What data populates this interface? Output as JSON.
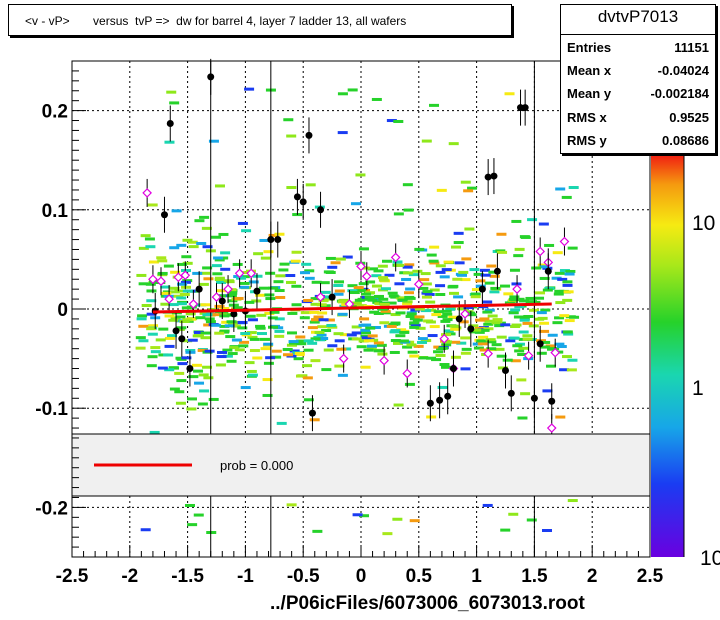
{
  "chart_data": {
    "type": "scatter",
    "title": "<v - vP>       versus  tvP =>  dw for barrel 4, layer 7 ladder 13, all wafers",
    "xlim": [
      -2.5,
      2.5
    ],
    "ylim": [
      -0.25,
      0.25
    ],
    "xticks": [
      "-2.5",
      "-2",
      "-1.5",
      "-1",
      "-0.5",
      "0",
      "0.5",
      "1",
      "1.5",
      "2",
      "2.5"
    ],
    "yticks": [
      "0.2",
      "0.1",
      "0",
      "-0.1",
      "-0.2"
    ],
    "zticks": [
      "10",
      "1",
      "10"
    ],
    "grid": true,
    "stats": {
      "name": "dvtvP7013",
      "rows": [
        {
          "label": "Entries",
          "value": "11151"
        },
        {
          "label": "Mean x",
          "value": "-0.04024"
        },
        {
          "label": "Mean y",
          "value": "-0.002184"
        },
        {
          "label": "RMS x",
          "value": "0.9525"
        },
        {
          "label": "RMS y",
          "value": "0.08686"
        }
      ]
    },
    "legend": {
      "text": "prob = 0.000",
      "position": "bottom-center"
    },
    "fit_line": {
      "x": [
        -1.8,
        1.65
      ],
      "y": [
        -0.003,
        0.005
      ],
      "color": "#ee0000"
    },
    "profile_points": [
      {
        "x": -1.78,
        "y": -0.002
      },
      {
        "x": -1.7,
        "y": 0.095
      },
      {
        "x": -1.65,
        "y": 0.187
      },
      {
        "x": -1.6,
        "y": -0.022
      },
      {
        "x": -1.55,
        "y": -0.03
      },
      {
        "x": -1.48,
        "y": -0.06
      },
      {
        "x": -1.4,
        "y": 0.02
      },
      {
        "x": -1.3,
        "y": 0.234
      },
      {
        "x": -1.2,
        "y": 0.008
      },
      {
        "x": -1.1,
        "y": -0.005
      },
      {
        "x": -1.0,
        "y": -0.002
      },
      {
        "x": -0.9,
        "y": 0.018
      },
      {
        "x": -0.78,
        "y": 0.07
      },
      {
        "x": -0.72,
        "y": 0.07
      },
      {
        "x": -0.55,
        "y": 0.113
      },
      {
        "x": -0.5,
        "y": 0.108
      },
      {
        "x": -0.45,
        "y": 0.175
      },
      {
        "x": -0.42,
        "y": -0.105
      },
      {
        "x": -0.35,
        "y": 0.1
      },
      {
        "x": -0.25,
        "y": 0.012
      },
      {
        "x": 0.6,
        "y": -0.095
      },
      {
        "x": 0.68,
        "y": -0.092
      },
      {
        "x": 0.75,
        "y": -0.088
      },
      {
        "x": 0.8,
        "y": -0.06
      },
      {
        "x": 0.85,
        "y": -0.01
      },
      {
        "x": 0.95,
        "y": -0.02
      },
      {
        "x": 1.05,
        "y": 0.02
      },
      {
        "x": 1.1,
        "y": 0.133
      },
      {
        "x": 1.15,
        "y": 0.134
      },
      {
        "x": 1.18,
        "y": 0.038
      },
      {
        "x": 1.25,
        "y": -0.062
      },
      {
        "x": 1.3,
        "y": -0.085
      },
      {
        "x": 1.38,
        "y": 0.203
      },
      {
        "x": 1.42,
        "y": 0.203
      },
      {
        "x": 1.5,
        "y": -0.09
      },
      {
        "x": 1.55,
        "y": -0.035
      },
      {
        "x": 1.62,
        "y": 0.038
      },
      {
        "x": 1.65,
        "y": -0.093
      }
    ],
    "open_points": [
      {
        "x": -1.85,
        "y": 0.117
      },
      {
        "x": -1.8,
        "y": 0.03
      },
      {
        "x": -1.73,
        "y": 0.028
      },
      {
        "x": -1.66,
        "y": 0.01
      },
      {
        "x": -1.58,
        "y": 0.032
      },
      {
        "x": -1.52,
        "y": 0.034
      },
      {
        "x": -1.45,
        "y": 0.005
      },
      {
        "x": -1.25,
        "y": 0.012
      },
      {
        "x": -1.15,
        "y": 0.02
      },
      {
        "x": -1.05,
        "y": 0.036
      },
      {
        "x": -0.95,
        "y": 0.036
      },
      {
        "x": -0.35,
        "y": 0.012
      },
      {
        "x": -0.15,
        "y": -0.05
      },
      {
        "x": -0.1,
        "y": 0.005
      },
      {
        "x": 0.0,
        "y": 0.043
      },
      {
        "x": 0.05,
        "y": 0.033
      },
      {
        "x": 0.2,
        "y": -0.052
      },
      {
        "x": 0.3,
        "y": 0.052
      },
      {
        "x": 0.4,
        "y": -0.065
      },
      {
        "x": 0.5,
        "y": 0.025
      },
      {
        "x": 0.72,
        "y": -0.03
      },
      {
        "x": 0.8,
        "y": -0.06
      },
      {
        "x": 0.9,
        "y": -0.005
      },
      {
        "x": 1.1,
        "y": -0.045
      },
      {
        "x": 1.35,
        "y": 0.02
      },
      {
        "x": 1.45,
        "y": -0.047
      },
      {
        "x": 1.55,
        "y": 0.058
      },
      {
        "x": 1.62,
        "y": 0.047
      },
      {
        "x": 1.68,
        "y": -0.044
      },
      {
        "x": 1.76,
        "y": 0.068
      },
      {
        "x": 1.65,
        "y": -0.12
      }
    ]
  },
  "file_label": "../P06icFiles/6073006_6073013.root"
}
